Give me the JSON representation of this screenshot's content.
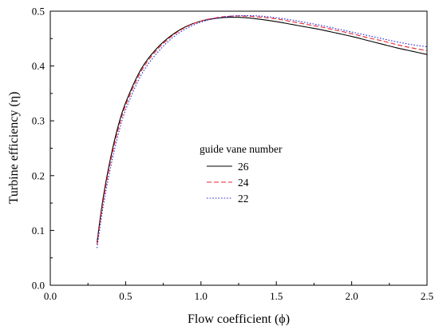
{
  "chart_data": {
    "type": "line",
    "xlabel": "Flow coefficient (ϕ)",
    "ylabel": "Turbine efficiency (η)",
    "xlim": [
      0.0,
      2.5
    ],
    "ylim": [
      0.0,
      0.5
    ],
    "xticks": [
      "0.0",
      "0.5",
      "1.0",
      "1.5",
      "2.0",
      "2.5"
    ],
    "yticks": [
      "0.0",
      "0.1",
      "0.2",
      "0.3",
      "0.4",
      "0.5"
    ],
    "grid": false,
    "legend": {
      "title": "guide vane number",
      "placement": "center-right"
    },
    "series": [
      {
        "name": "26",
        "color": "#000000",
        "dash": "solid",
        "x": [
          0.31,
          0.35,
          0.4,
          0.45,
          0.5,
          0.6,
          0.7,
          0.8,
          0.9,
          1.0,
          1.1,
          1.2,
          1.3,
          1.4,
          1.5,
          1.6,
          1.7,
          1.8,
          1.9,
          2.0,
          2.1,
          2.2,
          2.3,
          2.4,
          2.5
        ],
        "y": [
          0.078,
          0.158,
          0.232,
          0.29,
          0.333,
          0.393,
          0.43,
          0.455,
          0.472,
          0.482,
          0.487,
          0.489,
          0.488,
          0.485,
          0.481,
          0.476,
          0.471,
          0.466,
          0.46,
          0.454,
          0.447,
          0.44,
          0.433,
          0.427,
          0.421
        ]
      },
      {
        "name": "24",
        "color": "#e8232c",
        "dash": "dashed",
        "x": [
          0.31,
          0.35,
          0.4,
          0.45,
          0.5,
          0.6,
          0.7,
          0.8,
          0.9,
          1.0,
          1.1,
          1.2,
          1.3,
          1.4,
          1.5,
          1.6,
          1.7,
          1.8,
          1.9,
          2.0,
          2.1,
          2.2,
          2.3,
          2.4,
          2.5
        ],
        "y": [
          0.074,
          0.152,
          0.226,
          0.284,
          0.328,
          0.389,
          0.427,
          0.453,
          0.471,
          0.482,
          0.488,
          0.491,
          0.491,
          0.489,
          0.486,
          0.481,
          0.476,
          0.471,
          0.465,
          0.459,
          0.452,
          0.446,
          0.439,
          0.433,
          0.428
        ]
      },
      {
        "name": "22",
        "color": "#2b2bd8",
        "dash": "dotted",
        "x": [
          0.31,
          0.35,
          0.4,
          0.45,
          0.5,
          0.6,
          0.7,
          0.8,
          0.9,
          1.0,
          1.1,
          1.2,
          1.3,
          1.4,
          1.5,
          1.6,
          1.7,
          1.8,
          1.9,
          2.0,
          2.1,
          2.2,
          2.3,
          2.4,
          2.5
        ],
        "y": [
          0.068,
          0.142,
          0.215,
          0.274,
          0.32,
          0.382,
          0.421,
          0.449,
          0.468,
          0.48,
          0.487,
          0.491,
          0.492,
          0.491,
          0.488,
          0.484,
          0.479,
          0.474,
          0.468,
          0.462,
          0.456,
          0.45,
          0.444,
          0.439,
          0.435
        ]
      }
    ]
  }
}
